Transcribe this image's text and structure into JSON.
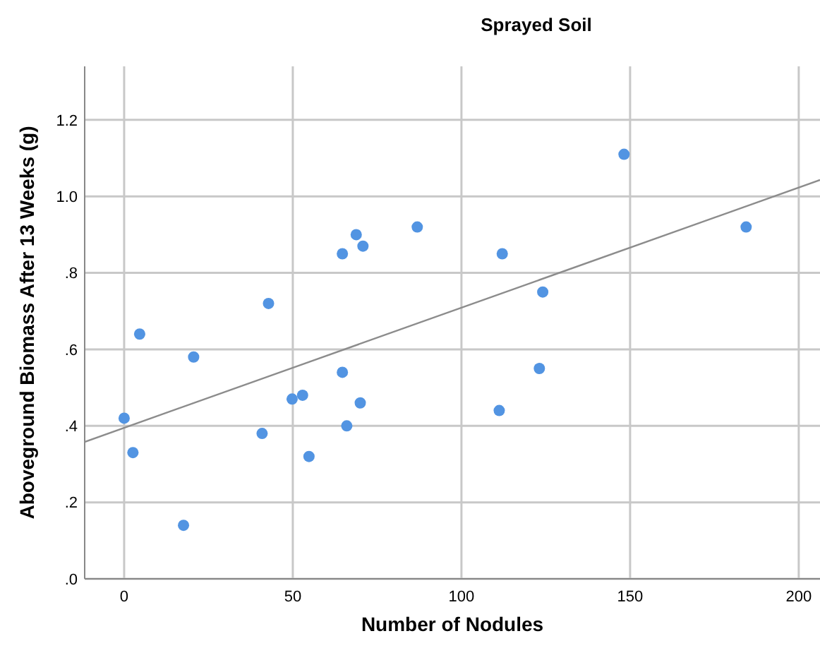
{
  "chart_data": {
    "type": "scatter",
    "title": "Sprayed Soil",
    "xlabel": "Number of Nodules",
    "ylabel": "Aboveground Biomass After 13 Weeks (g)",
    "xlim": [
      -11.7,
      206.3
    ],
    "xticks": [
      0,
      50,
      100,
      150,
      200
    ],
    "ylim": [
      0,
      1.34
    ],
    "yticks": [
      {
        "value": 0,
        "label": ".0"
      },
      {
        "value": 0.2,
        "label": ".2"
      },
      {
        "value": 0.4,
        "label": ".4"
      },
      {
        "value": 0.6,
        "label": ".6"
      },
      {
        "value": 0.8,
        "label": ".8"
      },
      {
        "value": 1.0,
        "label": "1.0"
      },
      {
        "value": 1.2,
        "label": "1.2"
      }
    ],
    "grid": true,
    "series": [
      {
        "marker": "circle",
        "color": "#5294e2",
        "x": [
          0,
          2.6,
          4.6,
          17.6,
          20.6,
          40.9,
          42.8,
          49.8,
          52.9,
          54.8,
          64.7,
          64.7,
          66,
          68.8,
          70,
          70.8,
          86.9,
          112.1,
          111.2,
          124.1,
          123.1,
          148.2,
          184.4
        ],
        "values": [
          0.42,
          0.33,
          0.64,
          0.14,
          0.58,
          0.38,
          0.72,
          0.47,
          0.48,
          0.32,
          0.85,
          0.54,
          0.4,
          0.9,
          0.46,
          0.87,
          0.92,
          0.85,
          0.44,
          0.75,
          0.55,
          1.11,
          0.92
        ]
      },
      {
        "type": "line",
        "color": "#8c8c8c",
        "x": [
          -11.7,
          206.3
        ],
        "values": [
          0.358,
          1.043
        ]
      }
    ]
  }
}
